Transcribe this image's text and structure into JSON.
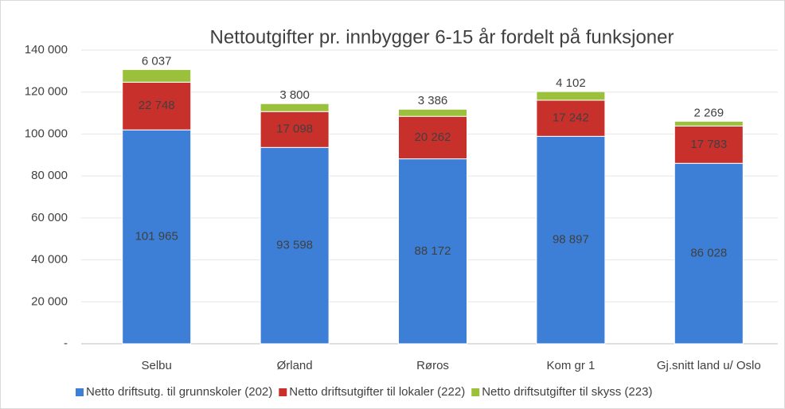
{
  "chart_data": {
    "type": "stacked_bar",
    "title": "Nettoutgifter pr. innbygger 6-15 år fordelt på funksjoner",
    "categories": [
      "Selbu",
      "Ørland",
      "Røros",
      "Kom gr 1",
      "Gj.snitt land u/ Oslo"
    ],
    "series": [
      {
        "name": "Netto driftsutg. til grunnskoler (202)",
        "color": "#3d7fd6",
        "values": [
          101965,
          93598,
          88172,
          98897,
          86028
        ],
        "value_labels": [
          "101 965",
          "93 598",
          "88 172",
          "98 897",
          "86 028"
        ]
      },
      {
        "name": "Netto driftsutgifter til lokaler (222)",
        "color": "#c8302c",
        "values": [
          22748,
          17098,
          20262,
          17242,
          17783
        ],
        "value_labels": [
          "22 748",
          "17 098",
          "20 262",
          "17 242",
          "17 783"
        ]
      },
      {
        "name": "Netto driftsutgifter til skyss (223)",
        "color": "#9bc13c",
        "values": [
          6037,
          3800,
          3386,
          4102,
          2269
        ],
        "value_labels": [
          "6 037",
          "3 800",
          "3 386",
          "4 102",
          "2 269"
        ]
      }
    ],
    "ylim": [
      0,
      140000
    ],
    "yticks": [
      {
        "value": 0,
        "label": "-"
      },
      {
        "value": 20000,
        "label": "20 000"
      },
      {
        "value": 40000,
        "label": "40 000"
      },
      {
        "value": 60000,
        "label": "60 000"
      },
      {
        "value": 80000,
        "label": "80 000"
      },
      {
        "value": 100000,
        "label": "100 000"
      },
      {
        "value": 120000,
        "label": "120 000"
      },
      {
        "value": 140000,
        "label": "140 000"
      }
    ],
    "legend": "bottom"
  }
}
